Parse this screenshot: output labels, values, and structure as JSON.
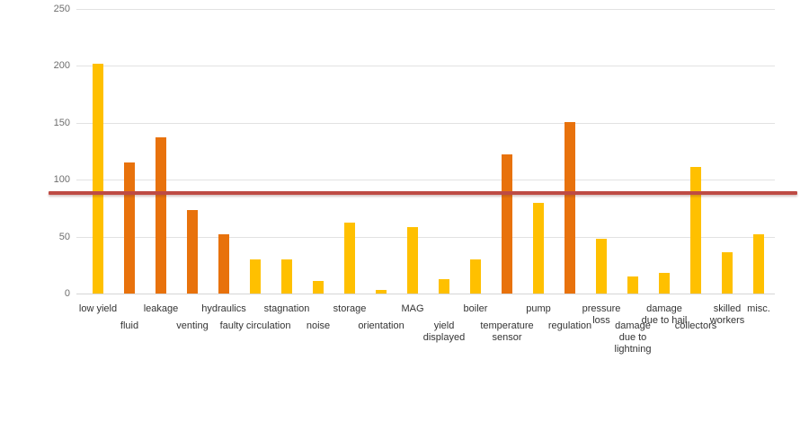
{
  "chart_data": {
    "type": "bar",
    "title": "",
    "xlabel": "",
    "ylabel": "",
    "ylim": [
      0,
      250
    ],
    "y_ticks": [
      0,
      50,
      100,
      150,
      200,
      250
    ],
    "y_tick_labels": [
      "0",
      "50",
      "100",
      "150",
      "200",
      "250"
    ],
    "grid": true,
    "legend": false,
    "categories": [
      "low yield",
      "fluid",
      "leakage",
      "venting",
      "hydraulics",
      "faulty circulation",
      "stagnation",
      "noise",
      "storage",
      "orientation",
      "MAG",
      "yield displayed",
      "boiler",
      "temperature sensor",
      "pump",
      "regulation",
      "pressure loss",
      "damage due to lightning",
      "damage due to hail",
      "collectors",
      "skilled workers",
      "misc."
    ],
    "values": [
      202,
      115,
      137,
      73,
      52,
      30,
      30,
      11,
      62,
      3,
      58,
      13,
      30,
      122,
      80,
      151,
      48,
      15,
      18,
      111,
      36,
      52
    ],
    "point_colors": [
      "#FFC000",
      "#E8720C",
      "#E8720C",
      "#E8720C",
      "#E8720C",
      "#FFC000",
      "#FFC000",
      "#FFC000",
      "#FFC000",
      "#FFC000",
      "#FFC000",
      "#FFC000",
      "#FFC000",
      "#E8720C",
      "#FFC000",
      "#E8720C",
      "#FFC000",
      "#FFC000",
      "#FFC000",
      "#FFC000",
      "#FFC000",
      "#FFC000"
    ],
    "reference_line": {
      "value": 88,
      "color": "#BE4B44"
    }
  },
  "colors": {
    "bar_yellow": "#FFC000",
    "bar_orange": "#E8720C",
    "reference_red": "#BE4B44",
    "gridline": "#E2E2E2",
    "axis_text": "#6E6E6E",
    "label_text": "#333333",
    "background": "#FFFFFF"
  }
}
